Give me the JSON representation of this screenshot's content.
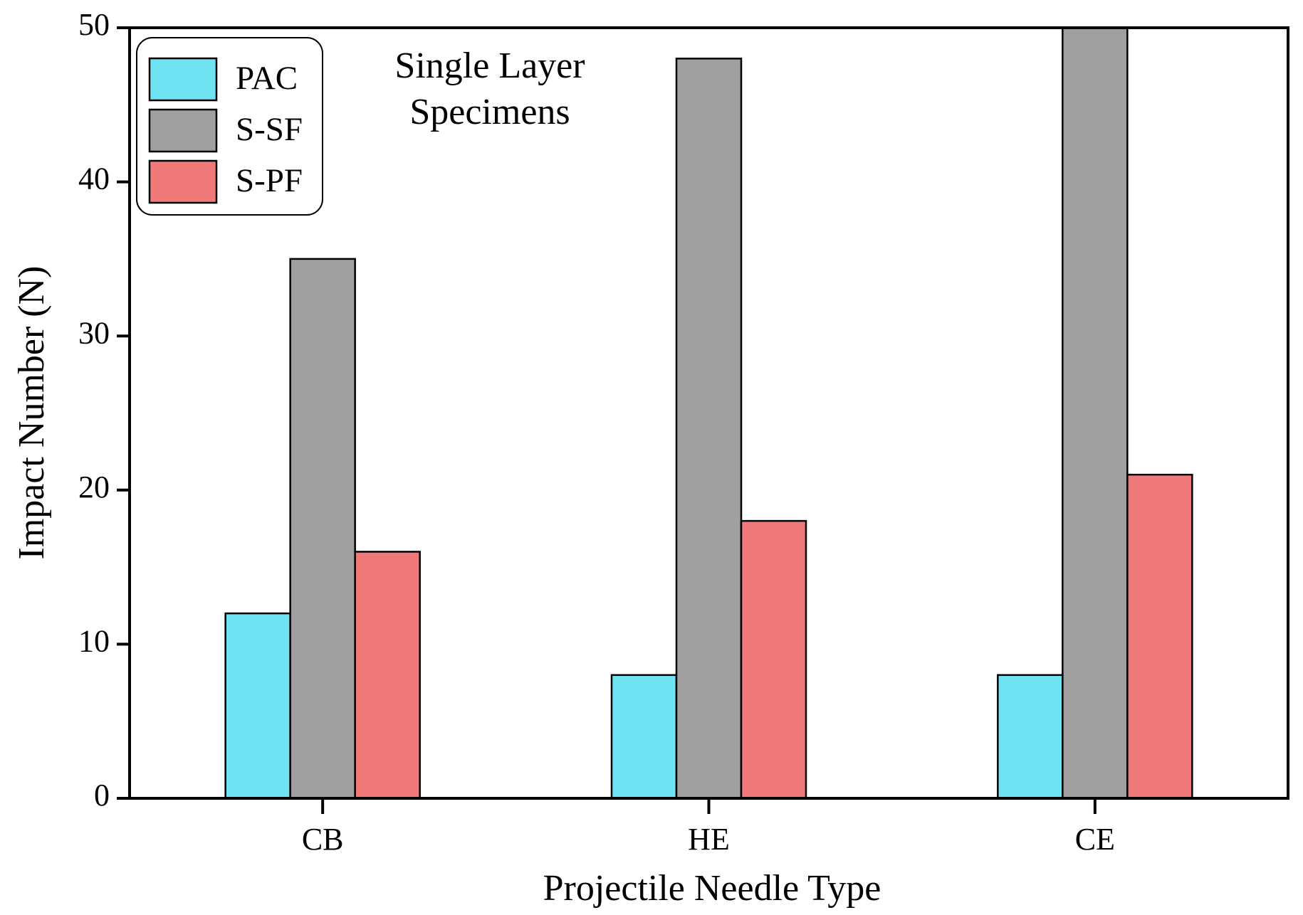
{
  "chart_data": {
    "type": "bar",
    "annotation": [
      "Single Layer",
      "Specimens"
    ],
    "x_label": "Projectile Needle Type",
    "y_label": "Impact Number (N)",
    "categories": [
      "CB",
      "HE",
      "CE"
    ],
    "series": [
      {
        "name": "PAC",
        "color": "#6fe3f2",
        "values": [
          12,
          8,
          8
        ]
      },
      {
        "name": "S-SF",
        "color": "#a0a0a0",
        "values": [
          35,
          48,
          50
        ]
      },
      {
        "name": "S-PF",
        "color": "#f07a7a",
        "values": [
          16,
          18,
          21
        ]
      }
    ],
    "ylim": [
      0,
      50
    ],
    "yticks": [
      0,
      10,
      20,
      30,
      40,
      50
    ],
    "legend": "upper-left",
    "grid": false
  }
}
